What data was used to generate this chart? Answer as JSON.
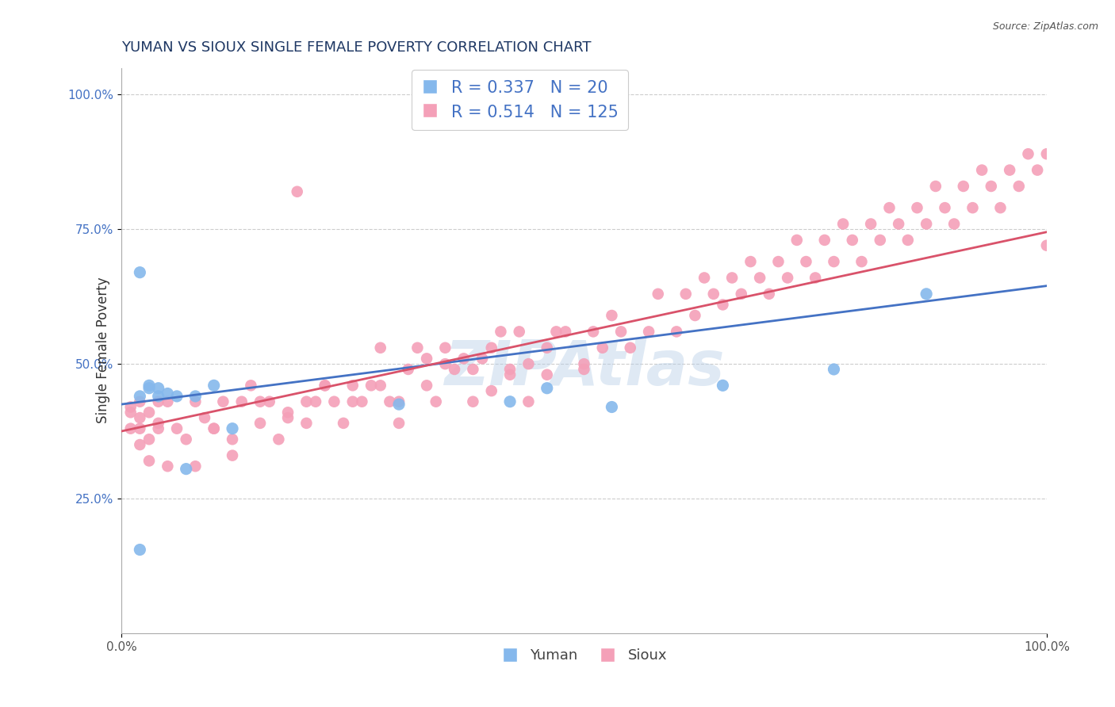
{
  "title": "YUMAN VS SIOUX SINGLE FEMALE POVERTY CORRELATION CHART",
  "source_text": "Source: ZipAtlas.com",
  "ylabel": "Single Female Poverty",
  "watermark": "ZIPAtlas",
  "yuman_R": 0.337,
  "yuman_N": 20,
  "sioux_R": 0.514,
  "sioux_N": 125,
  "yuman_color": "#85B8EC",
  "sioux_color": "#F4A0B8",
  "yuman_line_color": "#4472C4",
  "sioux_line_color": "#D9526A",
  "bg_color": "#ffffff",
  "grid_color": "#cccccc",
  "title_color": "#1F3864",
  "legend_text_color": "#4472C4",
  "ytick_color": "#4472C4",
  "yuman_x": [
    0.02,
    0.02,
    0.02,
    0.03,
    0.03,
    0.04,
    0.04,
    0.05,
    0.06,
    0.07,
    0.08,
    0.1,
    0.12,
    0.3,
    0.42,
    0.46,
    0.53,
    0.65,
    0.77,
    0.87
  ],
  "yuman_y": [
    0.155,
    0.67,
    0.44,
    0.455,
    0.46,
    0.44,
    0.455,
    0.445,
    0.44,
    0.305,
    0.44,
    0.46,
    0.38,
    0.425,
    0.43,
    0.455,
    0.42,
    0.46,
    0.49,
    0.63
  ],
  "sioux_x": [
    0.01,
    0.01,
    0.01,
    0.02,
    0.02,
    0.02,
    0.02,
    0.03,
    0.03,
    0.03,
    0.04,
    0.04,
    0.05,
    0.06,
    0.07,
    0.08,
    0.09,
    0.1,
    0.11,
    0.12,
    0.13,
    0.14,
    0.15,
    0.16,
    0.17,
    0.18,
    0.19,
    0.2,
    0.21,
    0.22,
    0.23,
    0.24,
    0.25,
    0.26,
    0.27,
    0.28,
    0.29,
    0.3,
    0.31,
    0.32,
    0.33,
    0.34,
    0.35,
    0.36,
    0.37,
    0.38,
    0.39,
    0.4,
    0.41,
    0.42,
    0.43,
    0.44,
    0.46,
    0.47,
    0.48,
    0.5,
    0.51,
    0.52,
    0.53,
    0.54,
    0.55,
    0.57,
    0.58,
    0.6,
    0.61,
    0.62,
    0.63,
    0.64,
    0.65,
    0.66,
    0.67,
    0.68,
    0.69,
    0.7,
    0.71,
    0.72,
    0.73,
    0.74,
    0.75,
    0.76,
    0.77,
    0.78,
    0.79,
    0.8,
    0.81,
    0.82,
    0.83,
    0.84,
    0.85,
    0.86,
    0.87,
    0.88,
    0.89,
    0.9,
    0.91,
    0.92,
    0.93,
    0.94,
    0.95,
    0.96,
    0.97,
    0.98,
    0.99,
    1.0,
    1.0,
    0.04,
    0.05,
    0.08,
    0.1,
    0.12,
    0.15,
    0.18,
    0.2,
    0.22,
    0.25,
    0.28,
    0.3,
    0.33,
    0.35,
    0.38,
    0.4,
    0.42,
    0.44,
    0.46,
    0.5
  ],
  "sioux_y": [
    0.38,
    0.41,
    0.42,
    0.35,
    0.38,
    0.4,
    0.43,
    0.32,
    0.36,
    0.41,
    0.38,
    0.43,
    0.31,
    0.38,
    0.36,
    0.31,
    0.4,
    0.38,
    0.43,
    0.33,
    0.43,
    0.46,
    0.39,
    0.43,
    0.36,
    0.41,
    0.82,
    0.39,
    0.43,
    0.46,
    0.43,
    0.39,
    0.46,
    0.43,
    0.46,
    0.53,
    0.43,
    0.39,
    0.49,
    0.53,
    0.51,
    0.43,
    0.53,
    0.49,
    0.51,
    0.43,
    0.51,
    0.53,
    0.56,
    0.49,
    0.56,
    0.43,
    0.53,
    0.56,
    0.56,
    0.49,
    0.56,
    0.53,
    0.59,
    0.56,
    0.53,
    0.56,
    0.63,
    0.56,
    0.63,
    0.59,
    0.66,
    0.63,
    0.61,
    0.66,
    0.63,
    0.69,
    0.66,
    0.63,
    0.69,
    0.66,
    0.73,
    0.69,
    0.66,
    0.73,
    0.69,
    0.76,
    0.73,
    0.69,
    0.76,
    0.73,
    0.79,
    0.76,
    0.73,
    0.79,
    0.76,
    0.83,
    0.79,
    0.76,
    0.83,
    0.79,
    0.86,
    0.83,
    0.79,
    0.86,
    0.83,
    0.89,
    0.86,
    0.89,
    0.72,
    0.39,
    0.43,
    0.43,
    0.38,
    0.36,
    0.43,
    0.4,
    0.43,
    0.46,
    0.43,
    0.46,
    0.43,
    0.46,
    0.5,
    0.49,
    0.45,
    0.48,
    0.5,
    0.48,
    0.5
  ],
  "blue_line_x": [
    0.0,
    1.0
  ],
  "blue_line_y": [
    0.425,
    0.645
  ],
  "pink_line_x": [
    0.0,
    1.0
  ],
  "pink_line_y": [
    0.375,
    0.745
  ],
  "xlim": [
    0.0,
    1.0
  ],
  "ylim": [
    0.0,
    1.05
  ],
  "xticks": [
    0.0,
    1.0
  ],
  "xticklabels": [
    "0.0%",
    "100.0%"
  ],
  "yticks": [
    0.25,
    0.5,
    0.75,
    1.0
  ],
  "yticklabels": [
    "25.0%",
    "50.0%",
    "75.0%",
    "100.0%"
  ]
}
